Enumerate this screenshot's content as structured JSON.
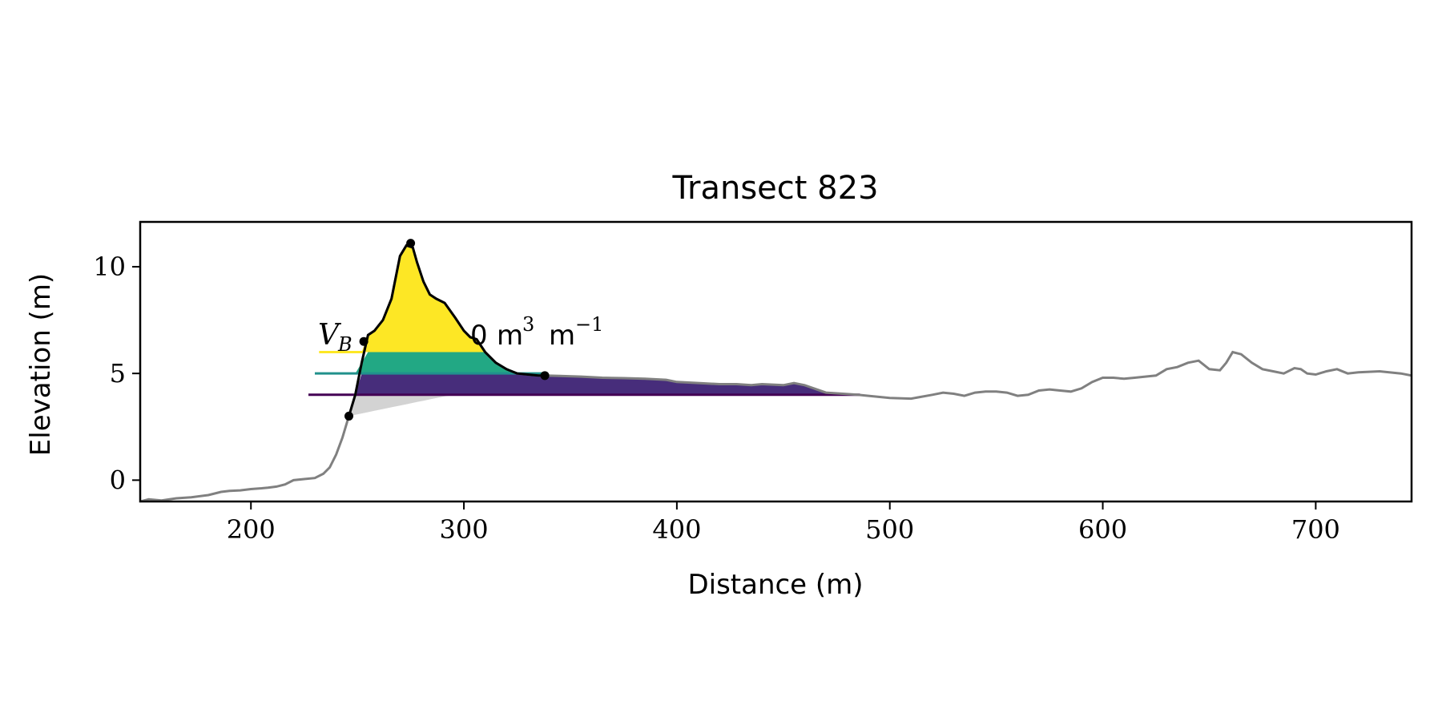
{
  "chart_data": {
    "type": "area",
    "title": "Transect 823",
    "xlabel": "Distance (m)",
    "ylabel": "Elevation (m)",
    "xlim": [
      148,
      745
    ],
    "ylim": [
      -1,
      12.1
    ],
    "xticks": [
      200,
      300,
      400,
      500,
      600,
      700
    ],
    "yticks": [
      0,
      5,
      10
    ],
    "grid": false,
    "annotation": {
      "var_main": "V",
      "var_sub": "B",
      "value": "0",
      "unit_a": "m",
      "unit_a_exp": "3",
      "unit_b": "m",
      "unit_b_exp": "−1"
    },
    "levels": [
      {
        "elevation": 6.0,
        "color": "#fde725",
        "start_x": 232
      },
      {
        "elevation": 5.0,
        "color": "#21918c",
        "start_x": 230
      },
      {
        "elevation": 4.0,
        "color": "#440154",
        "start_x": 227
      }
    ],
    "fill_colors": {
      "above_6": "#fde725",
      "band_5_6": "#22a884",
      "band_4_5": "#472d7b",
      "below_4": "#d3d3d3"
    },
    "profile_color": "#808080",
    "dune_color": "#000000",
    "profile": {
      "x": [
        148,
        152,
        158,
        165,
        172,
        180,
        186,
        190,
        195,
        200,
        205,
        208,
        212,
        216,
        220,
        225,
        230,
        234,
        237,
        240,
        243,
        246,
        249,
        252,
        255,
        258,
        262,
        266,
        270,
        273,
        276,
        278,
        281,
        284,
        287,
        291,
        296,
        300,
        303,
        306,
        310,
        315,
        320,
        325,
        330,
        335,
        338,
        345,
        355,
        365,
        375,
        385,
        395,
        400,
        410,
        420,
        428,
        435,
        440,
        450,
        455,
        460,
        470,
        478,
        485,
        490,
        500,
        510,
        520,
        525,
        530,
        535,
        540,
        545,
        550,
        555,
        560,
        565,
        570,
        575,
        580,
        585,
        590,
        595,
        600,
        605,
        610,
        615,
        620,
        625,
        630,
        635,
        640,
        645,
        650,
        655,
        658,
        661,
        665,
        670,
        675,
        680,
        685,
        690,
        693,
        696,
        700,
        705,
        710,
        715,
        720,
        730,
        740,
        745
      ],
      "y": [
        -1.0,
        -0.9,
        -0.95,
        -0.85,
        -0.8,
        -0.7,
        -0.55,
        -0.5,
        -0.48,
        -0.42,
        -0.38,
        -0.35,
        -0.3,
        -0.2,
        0.0,
        0.05,
        0.1,
        0.3,
        0.6,
        1.2,
        2.0,
        3.0,
        4.0,
        5.5,
        6.8,
        7.0,
        7.5,
        8.5,
        10.5,
        11.0,
        10.9,
        10.2,
        9.3,
        8.7,
        8.5,
        8.3,
        7.6,
        7.0,
        6.7,
        6.6,
        6.0,
        5.5,
        5.2,
        5.0,
        4.95,
        4.9,
        4.9,
        4.88,
        4.85,
        4.8,
        4.78,
        4.75,
        4.7,
        4.6,
        4.55,
        4.5,
        4.5,
        4.45,
        4.5,
        4.45,
        4.55,
        4.45,
        4.1,
        4.05,
        4.0,
        3.95,
        3.85,
        3.82,
        4.0,
        4.1,
        4.05,
        3.95,
        4.1,
        4.15,
        4.15,
        4.1,
        3.95,
        4.0,
        4.2,
        4.25,
        4.2,
        4.15,
        4.3,
        4.6,
        4.8,
        4.8,
        4.75,
        4.8,
        4.85,
        4.9,
        5.2,
        5.3,
        5.5,
        5.6,
        5.2,
        5.15,
        5.5,
        6.0,
        5.9,
        5.5,
        5.2,
        5.1,
        5.0,
        5.25,
        5.2,
        5.0,
        4.95,
        5.1,
        5.2,
        5.0,
        5.05,
        5.1,
        5.0,
        4.9
      ]
    },
    "dune_points": [
      {
        "x": 246,
        "y": 3.0
      },
      {
        "x": 253,
        "y": 6.5
      },
      {
        "x": 275,
        "y": 11.1
      },
      {
        "x": 338,
        "y": 4.9
      }
    ]
  }
}
